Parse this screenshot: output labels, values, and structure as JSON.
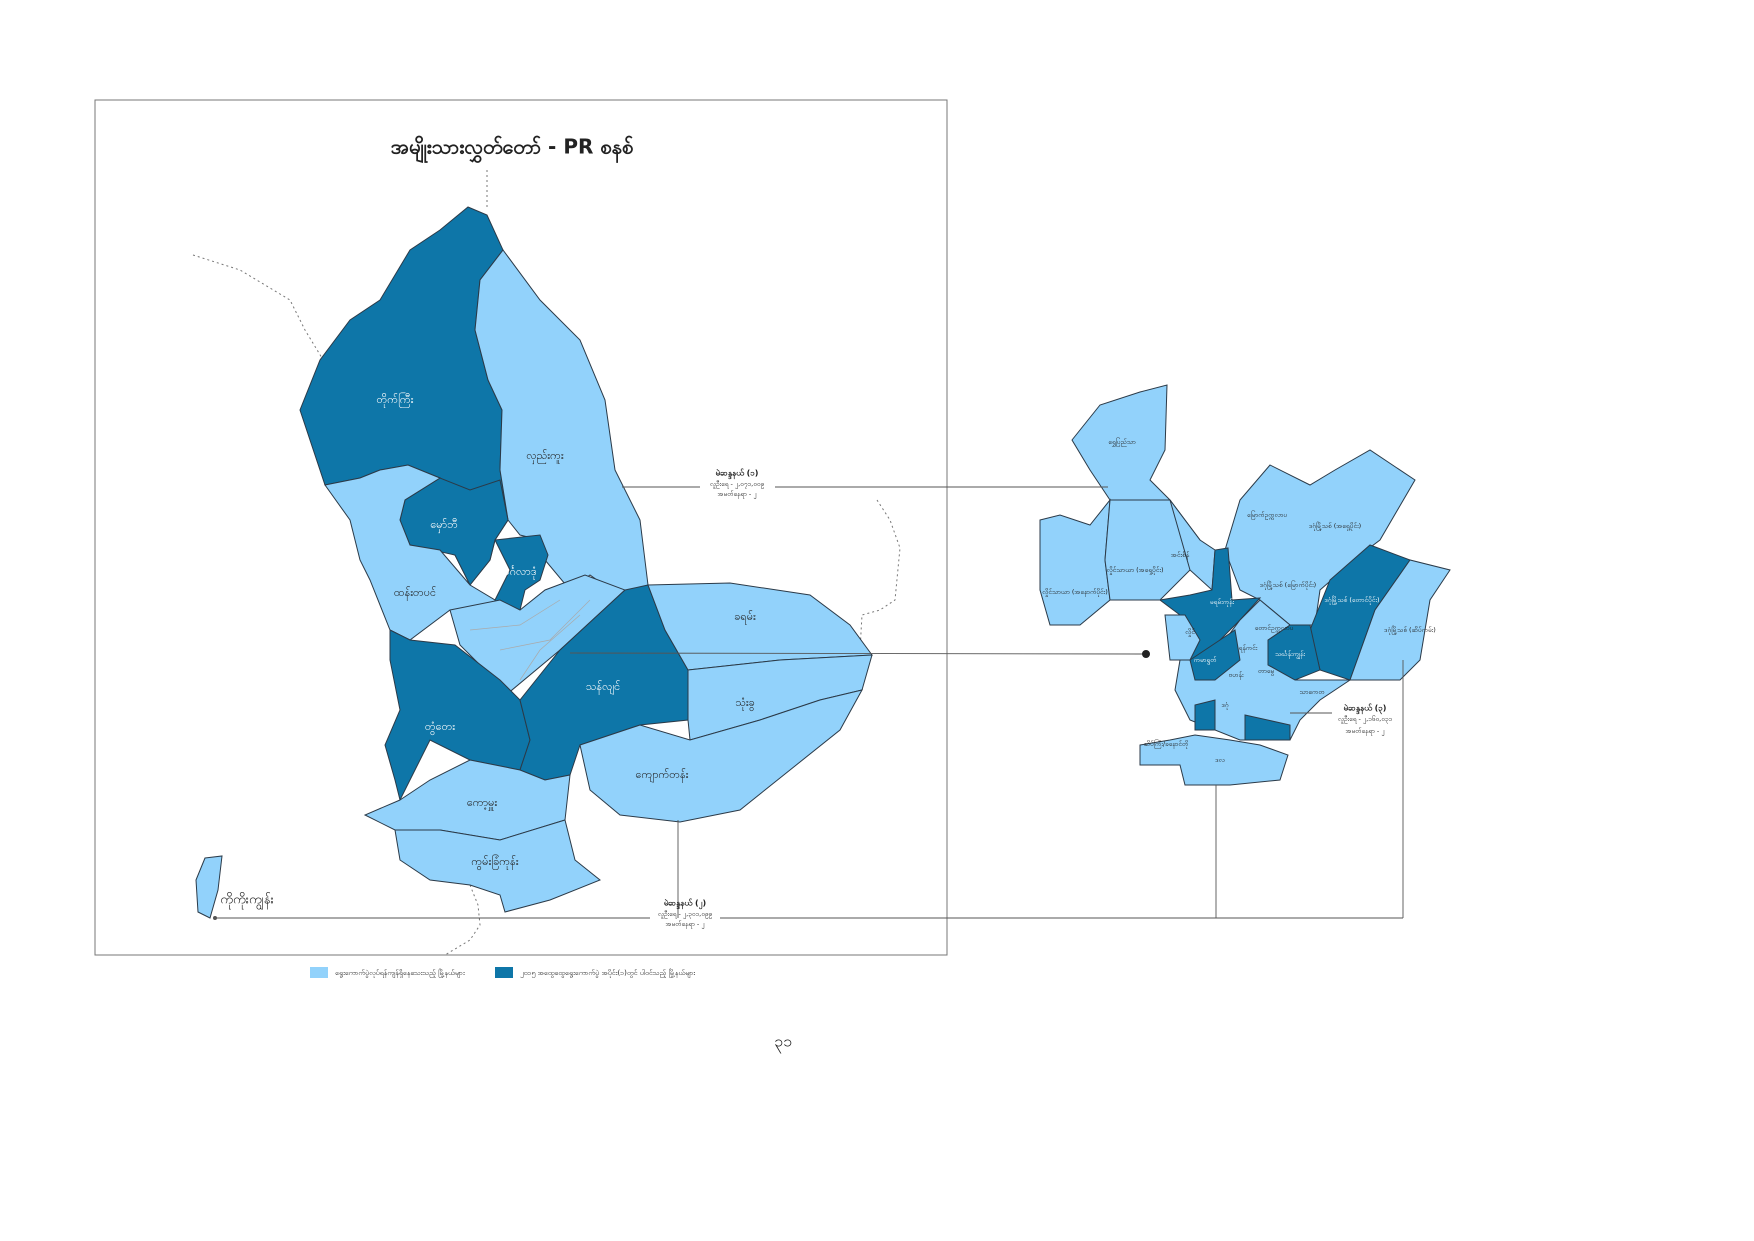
{
  "title": "အမျိုးသားလွှတ်တော် - PR စနစ်",
  "left_map": {
    "townships": [
      "တိုက်ကြီး",
      "လှည်းကူး",
      "မှော်ဘီ",
      "မင်္ဂလာဒုံ",
      "ထန်းတပင်",
      "ခရမ်း",
      "သန်လျင်",
      "သုံးခွ",
      "တွံတေး",
      "ကျောက်တန်း",
      "ကော့မှူး",
      "ကွမ်းခြံကုန်း",
      "ကိုကိုးကျွန်း"
    ]
  },
  "right_map": {
    "townships": [
      "ရွှေပြည်သာ",
      "လှိုင်သာယာ (အနောက်ပိုင်း)",
      "လှိုင်သာယာ (အရှေ့ပိုင်း)",
      "အင်းစိန်",
      "မြောက်ဥက္ကလာပ",
      "ဒဂုံမြို့သစ် (အရှေ့ပိုင်း)",
      "ဒဂုံမြို့သစ် (မြောက်ပိုင်း)",
      "ဒဂုံမြို့သစ် (တောင်ပိုင်း)",
      "ဒဂုံမြို့သစ် (ဆိပ်ကမ်း)",
      "မရမ်းကုန်း",
      "လှိုင်",
      "တောင်ဥက္ကလာပ",
      "ကမာရွတ်",
      "ရန်ကင်း",
      "သင်္ဃန်းကျွန်း",
      "ဗဟန်း",
      "တာမွေ",
      "သာကေတ",
      "ဒဂုံ",
      "ဆိပ်ကြီး/ခနောင်တို",
      "ဒလ"
    ]
  },
  "constituencies": [
    {
      "name": "မဲဆန္ဒနယ် (၁)",
      "population": "လူဦးရေ - ၂,၀၇၁,၀၀၉",
      "seats": "အမတ်နေရာ - ၂"
    },
    {
      "name": "မဲဆန္ဒနယ် (၂)",
      "population": "လူဦးရေ - ၂,၃၀၁,၀၉၉",
      "seats": "အမတ်နေရာ - ၂"
    },
    {
      "name": "မဲဆန္ဒနယ် (၃)",
      "population": "လူဦးရေ - ၂,၁၆၀,၀၃၁",
      "seats": "အမတ်နေရာ - ၂"
    }
  ],
  "legend": [
    "ရွေးကောက်ပွဲလုပ်ရန်ကျန်ရှိနေသေးသည့် မြို့နယ်များ",
    "၂၀၁၅ အထွေထွေရွေးကောက်ပွဲ အပိုင်း(၁)တွင် ပါဝင်သည့် မြို့နယ်များ"
  ],
  "page_number": "၃၁"
}
